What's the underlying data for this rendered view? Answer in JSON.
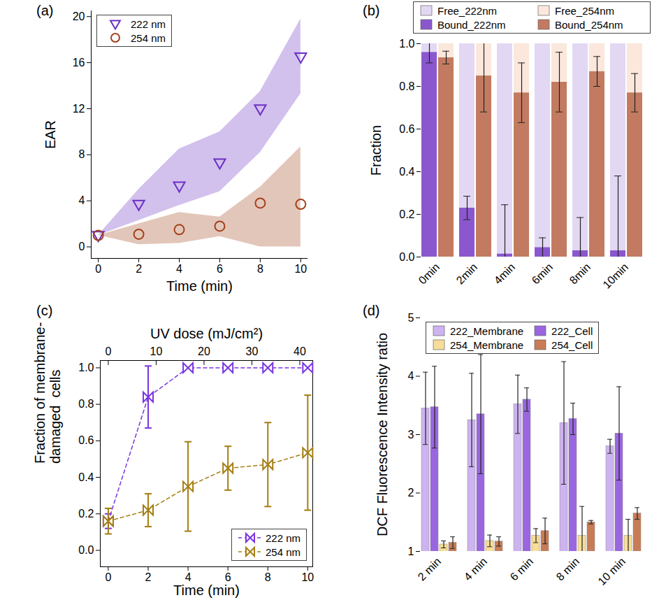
{
  "chart_data": [
    {
      "type": "scatter",
      "title": "(a)",
      "xlabel": "Time (min)",
      "ylabel": "EAR",
      "xlim": [
        -0.35,
        10.35
      ],
      "xticks": [
        0,
        2,
        4,
        6,
        8,
        10
      ],
      "ylim": [
        -1,
        20.5
      ],
      "yticks": [
        0,
        4,
        8,
        12,
        16,
        20
      ],
      "legend": "upper left",
      "x": [
        0,
        2,
        4,
        6,
        8,
        10
      ],
      "series": [
        {
          "name": "222 nm",
          "color": "#6b2fc5",
          "marker": "triangle-down",
          "values": [
            1.0,
            3.7,
            5.3,
            7.3,
            12.0,
            16.5
          ],
          "band_low": [
            1.0,
            2.3,
            3.6,
            4.8,
            8.2,
            13.3
          ],
          "band_high": [
            1.0,
            5.0,
            8.5,
            10.0,
            13.5,
            19.8
          ]
        },
        {
          "name": "254 nm",
          "color": "#a3411b",
          "marker": "circle",
          "values": [
            1.0,
            1.1,
            1.5,
            1.8,
            3.8,
            3.7
          ],
          "band_low": [
            1.0,
            0.2,
            0.3,
            0.9,
            0.0,
            0.0
          ],
          "band_high": [
            1.0,
            2.0,
            3.0,
            2.6,
            5.2,
            8.7
          ]
        }
      ]
    },
    {
      "type": "bar",
      "stacked": true,
      "title": "(b)",
      "ylabel": "Fraction",
      "categories": [
        "0min",
        "2min",
        "4min",
        "6min",
        "8min",
        "10min"
      ],
      "ylim": [
        0,
        1
      ],
      "yticks": [
        {
          "value": 0,
          "label": "0.0"
        },
        {
          "value": 0.2,
          "label": "0.2"
        },
        {
          "value": 0.4,
          "label": "0.4"
        },
        {
          "value": 0.6,
          "label": "0.6"
        },
        {
          "value": 0.8,
          "label": "0.8"
        },
        {
          "value": 1,
          "label": "1.0"
        }
      ],
      "legend": "top",
      "stacks": [
        {
          "series": [
            {
              "name": "Bound_222nm",
              "color": "#8a57cf",
              "values": [
                0.96,
                0.23,
                0.015,
                0.045,
                0.03,
                0.03
              ],
              "error": [
                0.05,
                0.055,
                0.23,
                0.045,
                0.155,
                0.35
              ]
            },
            {
              "name": "Free_222nm",
              "color": "#e2d8f3",
              "values": [
                0.04,
                0.77,
                0.985,
                0.955,
                0.97,
                0.97
              ]
            }
          ]
        },
        {
          "series": [
            {
              "name": "Bound_254nm",
              "color": "#c27b60",
              "values": [
                0.935,
                0.85,
                0.77,
                0.82,
                0.87,
                0.77
              ],
              "error": [
                0.03,
                0.17,
                0.14,
                0.14,
                0.07,
                0.09
              ]
            },
            {
              "name": "Free_254nm",
              "color": "#fbe7dc",
              "values": [
                0.065,
                0.15,
                0.23,
                0.18,
                0.13,
                0.23
              ]
            }
          ]
        }
      ]
    },
    {
      "type": "line",
      "title": "(c)",
      "xlabel": "Time (min)",
      "x2label": "UV dose (mJ/cm²)",
      "ylabel": "Fraction of membrane-\ndamaged  cells",
      "xlim": [
        -0.4,
        10.25
      ],
      "xticks": [
        0,
        2,
        4,
        6,
        8,
        10
      ],
      "x2lim": [
        -1.67,
        42.7
      ],
      "x2ticks": [
        0,
        10,
        20,
        30,
        40
      ],
      "ylim": [
        -0.09,
        1.04
      ],
      "yticks": [
        {
          "value": 0,
          "label": "0.0"
        },
        {
          "value": 0.2,
          "label": "0.2"
        },
        {
          "value": 0.4,
          "label": "0.4"
        },
        {
          "value": 0.6,
          "label": "0.6"
        },
        {
          "value": 0.8,
          "label": "0.8"
        },
        {
          "value": 1,
          "label": "1.0"
        }
      ],
      "legend": "lower right",
      "x": [
        0,
        2,
        4,
        6,
        8,
        10
      ],
      "series": [
        {
          "name": "222 nm",
          "color": "#7b35e0",
          "marker": "bowtie",
          "line_style": "dashed",
          "values": [
            0.16,
            0.84,
            1.0,
            1.0,
            1.0,
            1.0
          ],
          "error": [
            0.04,
            0.17,
            0.0,
            0.0,
            0.0,
            0.0
          ]
        },
        {
          "name": "254 nm",
          "color": "#a47d12",
          "marker": "bowtie",
          "line_style": "dashed",
          "values": [
            0.16,
            0.22,
            0.35,
            0.45,
            0.47,
            0.535
          ],
          "error": [
            0.07,
            0.09,
            0.245,
            0.12,
            0.23,
            0.315
          ]
        }
      ]
    },
    {
      "type": "bar",
      "title": "(d)",
      "ylabel": "DCF Fluorescence Intensity ratio",
      "categories": [
        "2 min",
        "4 min",
        "6 min",
        "8 min",
        "10 min"
      ],
      "ylim": [
        1,
        5
      ],
      "yticks": [
        1,
        2,
        3,
        4,
        5
      ],
      "legend": "upper left",
      "series": [
        {
          "name": "222_Membrane",
          "color": "#cdb3ef",
          "values": [
            3.45,
            3.25,
            3.52,
            3.2,
            2.8
          ],
          "error": [
            0.62,
            0.8,
            0.5,
            1.05,
            0.12
          ]
        },
        {
          "name": "222_Cell",
          "color": "#9a66e0",
          "values": [
            3.47,
            3.35,
            3.6,
            3.27,
            3.02
          ],
          "error": [
            0.7,
            1.02,
            0.2,
            0.27,
            0.8
          ]
        },
        {
          "name": "254_Membrane",
          "color": "#f7dd98",
          "values": [
            1.12,
            1.18,
            1.27,
            1.27,
            1.27
          ],
          "error": [
            0.06,
            0.1,
            0.12,
            0.5,
            0.28
          ]
        },
        {
          "name": "254_Cell",
          "color": "#c77c56",
          "values": [
            1.15,
            1.17,
            1.35,
            1.5,
            1.65
          ],
          "error": [
            0.1,
            0.08,
            0.22,
            0.03,
            0.1
          ]
        }
      ]
    }
  ]
}
